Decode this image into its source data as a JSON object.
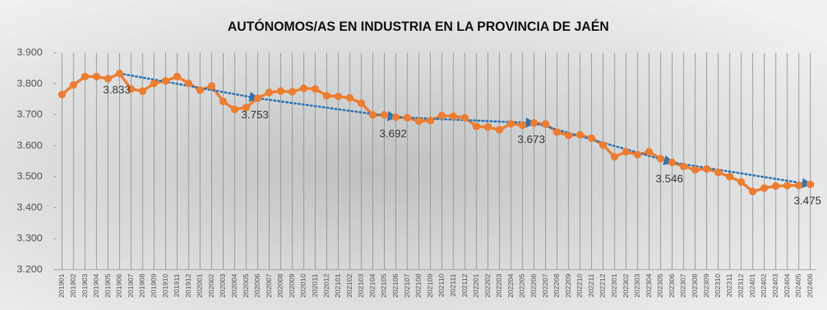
{
  "chart_data": {
    "type": "line",
    "title": "AUTÓNOMOS/AS EN INDUSTRIA EN LA PROVINCIA DE JAÉN",
    "categories": [
      "201901",
      "201902",
      "201903",
      "201904",
      "201905",
      "201906",
      "201907",
      "201908",
      "201909",
      "201910",
      "201911",
      "201912",
      "202001",
      "202002",
      "202003",
      "202004",
      "202005",
      "202006",
      "202007",
      "202008",
      "202009",
      "202010",
      "202011",
      "202012",
      "202101",
      "202102",
      "202103",
      "202104",
      "202105",
      "202106",
      "202107",
      "202108",
      "202109",
      "202110",
      "202111",
      "202112",
      "202201",
      "202202",
      "202203",
      "202204",
      "202205",
      "202206",
      "202207",
      "202208",
      "202209",
      "202210",
      "202211",
      "202212",
      "202301",
      "202302",
      "202303",
      "202304",
      "202305",
      "202306",
      "202307",
      "202308",
      "202309",
      "202310",
      "202311",
      "202312",
      "202401",
      "202402",
      "202403",
      "202404",
      "202405",
      "202406"
    ],
    "series": [
      {
        "name": null,
        "color": "#ED7D31",
        "values": [
          3765,
          3796,
          3823,
          3823,
          3816,
          3833,
          3783,
          3776,
          3801,
          3809,
          3823,
          3801,
          3779,
          3792,
          3743,
          3717,
          3723,
          3753,
          3772,
          3776,
          3774,
          3785,
          3783,
          3761,
          3759,
          3754,
          3737,
          3699,
          3699,
          3692,
          3690,
          3679,
          3681,
          3697,
          3695,
          3690,
          3662,
          3660,
          3651,
          3671,
          3666,
          3673,
          3670,
          3644,
          3633,
          3635,
          3624,
          3602,
          3564,
          3580,
          3571,
          3580,
          3558,
          3546,
          3533,
          3522,
          3525,
          3514,
          3500,
          3483,
          3452,
          3463,
          3470,
          3471,
          3472,
          3475
        ],
        "value_labels": [
          null,
          null,
          null,
          null,
          null,
          "3.833",
          null,
          null,
          null,
          null,
          null,
          null,
          null,
          null,
          null,
          null,
          null,
          "3.753",
          null,
          null,
          null,
          null,
          null,
          null,
          null,
          null,
          null,
          null,
          null,
          "3.692",
          null,
          null,
          null,
          null,
          null,
          null,
          null,
          null,
          null,
          null,
          null,
          "3.673",
          null,
          null,
          null,
          null,
          null,
          null,
          null,
          null,
          null,
          null,
          null,
          "3.546",
          null,
          null,
          null,
          null,
          null,
          null,
          null,
          null,
          null,
          null,
          null,
          "3.475"
        ]
      }
    ],
    "trend_color": "#2E75B6",
    "ylim": [
      3200,
      3900
    ],
    "yticks": [
      {
        "value": 3200,
        "label": "3.200"
      },
      {
        "value": 3300,
        "label": "3.300"
      },
      {
        "value": 3400,
        "label": "3.400"
      },
      {
        "value": 3500,
        "label": "3.500"
      },
      {
        "value": 3600,
        "label": "3.600"
      },
      {
        "value": 3700,
        "label": "3.700"
      },
      {
        "value": 3800,
        "label": "3.800"
      },
      {
        "value": 3900,
        "label": "3.900"
      }
    ],
    "grid": "x"
  }
}
